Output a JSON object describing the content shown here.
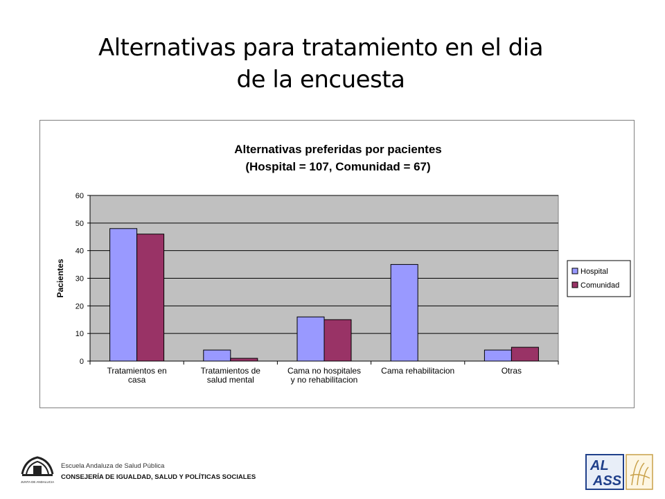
{
  "slide": {
    "title_line1": "Alternativas para tratamiento en el dia",
    "title_line2": "de la encuesta"
  },
  "chart_data": {
    "type": "bar",
    "title": "Alternativas preferidas por pacientes",
    "subtitle": "(Hospital = 107, Comunidad = 67)",
    "ylabel": "Pacientes",
    "xlabel": "",
    "ylim": [
      0,
      60
    ],
    "yticks": [
      0,
      10,
      20,
      30,
      40,
      50,
      60
    ],
    "grid": true,
    "legend_position": "right",
    "categories": [
      [
        "Tratamientos en",
        "casa"
      ],
      [
        "Tratamientos de",
        "salud mental"
      ],
      [
        "Cama no hospitales",
        "y no rehabilitacion"
      ],
      [
        "Cama rehabilitacion"
      ],
      [
        "Otras"
      ]
    ],
    "series": [
      {
        "name": "Hospital",
        "color": "#9999ff",
        "values": [
          48,
          4,
          16,
          35,
          4
        ]
      },
      {
        "name": "Comunidad",
        "color": "#993366",
        "values": [
          46,
          1,
          15,
          0,
          5
        ]
      }
    ],
    "plot_background": "#c0c0c0"
  },
  "footer": {
    "org_name": "Escuela Andaluza de Salud Pública",
    "department": "CONSEJERÍA DE IGUALDAD, SALUD Y POLÍTICAS SOCIALES",
    "logo_left_text": "JUNTA DE ANDALUCIA",
    "logo_right_text": "AL ASS"
  }
}
